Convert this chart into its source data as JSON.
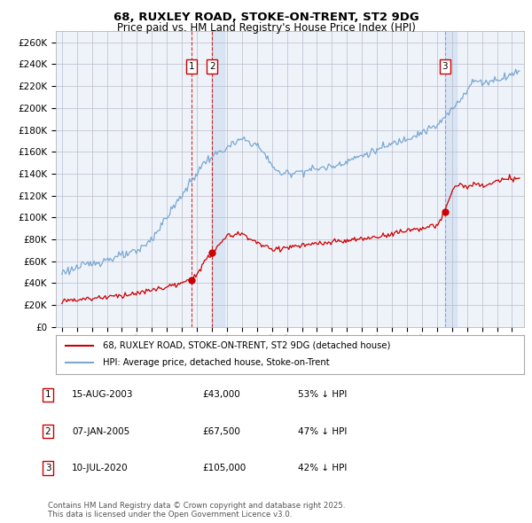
{
  "title": "68, RUXLEY ROAD, STOKE-ON-TRENT, ST2 9DG",
  "subtitle": "Price paid vs. HM Land Registry's House Price Index (HPI)",
  "legend_line1": "68, RUXLEY ROAD, STOKE-ON-TRENT, ST2 9DG (detached house)",
  "legend_line2": "HPI: Average price, detached house, Stoke-on-Trent",
  "hpi_color": "#7aa8d2",
  "price_color": "#cc0000",
  "grid_color": "#bbbbcc",
  "background_color": "#ffffff",
  "chart_bg_color": "#eef3fa",
  "ylim": [
    0,
    270000
  ],
  "yticks": [
    0,
    20000,
    40000,
    60000,
    80000,
    100000,
    120000,
    140000,
    160000,
    180000,
    200000,
    220000,
    240000,
    260000
  ],
  "xlim_start": 1994.6,
  "xlim_end": 2025.8,
  "transactions": [
    {
      "label": "1",
      "date": "15-AUG-2003",
      "price": 43000,
      "pct": "53% ↓ HPI",
      "x_year": 2003.62,
      "vline_color": "#cc0000",
      "vline_style": "--",
      "shade": false
    },
    {
      "label": "2",
      "date": "07-JAN-2005",
      "price": 67500,
      "pct": "47% ↓ HPI",
      "x_year": 2005.02,
      "vline_color": "#cc0000",
      "vline_style": "--",
      "shade": true
    },
    {
      "label": "3",
      "date": "10-JUL-2020",
      "price": 105000,
      "pct": "42% ↓ HPI",
      "x_year": 2020.52,
      "vline_color": "#8888cc",
      "vline_style": "--",
      "shade": true
    }
  ],
  "footnote": "Contains HM Land Registry data © Crown copyright and database right 2025.\nThis data is licensed under the Open Government Licence v3.0."
}
